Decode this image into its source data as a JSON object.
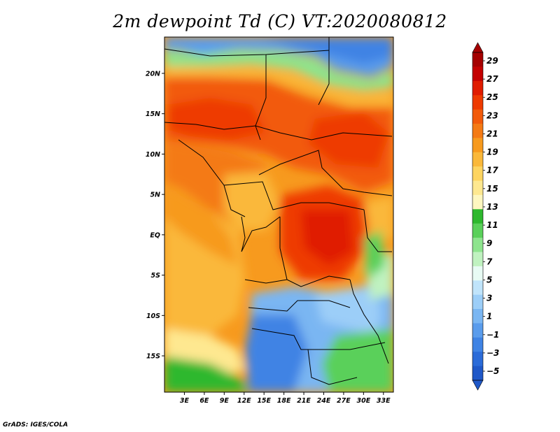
{
  "title": "2m dewpoint Td (C) VT:2020080812",
  "credit": "GrADS: IGES/COLA",
  "map": {
    "lat_ticks": [
      "20N",
      "15N",
      "10N",
      "5N",
      "EQ",
      "5S",
      "10S",
      "15S"
    ],
    "lon_ticks": [
      "3E",
      "6E",
      "9E",
      "12E",
      "15E",
      "18E",
      "21E",
      "24E",
      "27E",
      "30E",
      "33E"
    ],
    "lon_range": [
      0,
      34.5
    ],
    "lat_range": [
      -19.5,
      24.5
    ]
  },
  "colorbar": {
    "labels": [
      "29",
      "27",
      "25",
      "23",
      "21",
      "19",
      "17",
      "15",
      "13",
      "11",
      "9",
      "7",
      "5",
      "3",
      "1",
      "−1",
      "−3",
      "−5"
    ],
    "colors": [
      "#a50000",
      "#c40000",
      "#e01c00",
      "#ee3a00",
      "#f25a0a",
      "#f47a14",
      "#f79a1e",
      "#fab83a",
      "#fdd460",
      "#fee890",
      "#fef7c0",
      "#2eb82e",
      "#5ad05a",
      "#8ee48e",
      "#c0f2c0",
      "#e8fbf4",
      "#c0e4fb",
      "#9ccef8",
      "#7ab6f2",
      "#5a9cec",
      "#3f83e4",
      "#2b6bd8",
      "#1f58c8"
    ]
  }
}
